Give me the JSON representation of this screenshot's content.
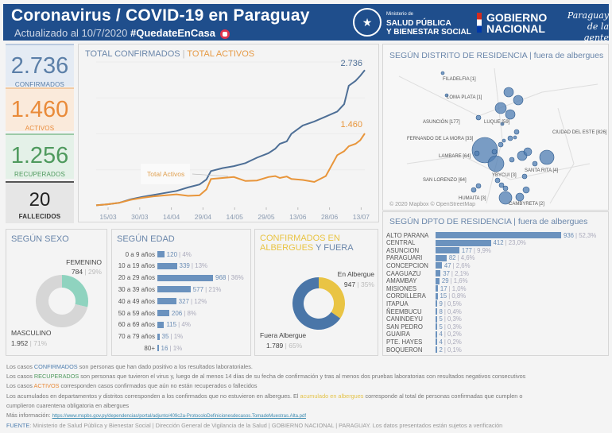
{
  "header": {
    "title": "Coronavirus / COVID-19 en Paraguay",
    "updated": "Actualizado al 10/7/2020",
    "hashtag": "#QuedateEnCasa",
    "ministry_small": "Ministerio de",
    "ministry_line1": "SALUD PÚBLICA",
    "ministry_line2": "Y BIENESTAR SOCIAL",
    "gob_line1": "GOBIERNO",
    "gob_line2": "NACIONAL",
    "slogan_line1": "Paraguay",
    "slogan_line2": "de la gente"
  },
  "kpis": {
    "confirmados": {
      "value": "2.736",
      "label": "CONFIRMADOS"
    },
    "activos": {
      "value": "1.460",
      "label": "ACTIVOS"
    },
    "recuperados": {
      "value": "1.256",
      "label": "RECUPERADOS"
    },
    "fallecidos": {
      "value": "20",
      "label": "FALLECIDOS"
    }
  },
  "colors": {
    "confirmados": "#4e6f96",
    "activos": "#e8953a",
    "recuperados": "#4f9a5e",
    "femenino": "#8fd3bf",
    "masculino": "#d6d6d6",
    "albergue": "#e9c444",
    "fuera": "#4a76a8",
    "bar": "#6b92be"
  },
  "chart_data": [
    {
      "type": "line",
      "title_part1": "TOTAL CONFIRMADOS",
      "title_part2": "TOTAL ACTIVOS",
      "x_ticks": [
        "15/03",
        "30/03",
        "14/04",
        "29/04",
        "14/05",
        "29/05",
        "13/06",
        "28/06",
        "13/07"
      ],
      "ylim": [
        0,
        2900
      ],
      "annotation": "Total Activos",
      "series": [
        {
          "name": "Total Confirmados",
          "end_label": "2.736",
          "x": [
            0,
            5,
            10,
            15,
            20,
            25,
            30,
            35,
            40,
            45,
            48,
            50,
            55,
            60,
            65,
            70,
            75,
            78,
            80,
            83,
            85,
            90,
            95,
            100,
            105,
            108,
            110,
            113,
            115,
            117
          ],
          "values": [
            10,
            30,
            60,
            130,
            180,
            220,
            260,
            300,
            370,
            430,
            530,
            700,
            760,
            800,
            860,
            970,
            1060,
            1150,
            1250,
            1300,
            1450,
            1620,
            1700,
            1800,
            1900,
            2050,
            2420,
            2520,
            2620,
            2736
          ]
        },
        {
          "name": "Total Activos",
          "end_label": "1.460",
          "x": [
            0,
            5,
            10,
            15,
            20,
            25,
            30,
            35,
            40,
            45,
            48,
            50,
            55,
            60,
            65,
            70,
            75,
            78,
            80,
            83,
            85,
            90,
            95,
            100,
            105,
            108,
            110,
            113,
            115,
            117
          ],
          "values": [
            10,
            30,
            60,
            120,
            160,
            190,
            210,
            230,
            200,
            210,
            330,
            540,
            560,
            580,
            500,
            510,
            580,
            600,
            560,
            590,
            540,
            520,
            480,
            600,
            1020,
            1100,
            1200,
            1250,
            1320,
            1460
          ]
        }
      ]
    },
    {
      "type": "pie",
      "title": "SEGÚN SEXO",
      "slices": [
        {
          "label": "FEMENINO",
          "value": 784,
          "value_text": "784",
          "pct": "29%"
        },
        {
          "label": "MASCULINO",
          "value": 1952,
          "value_text": "1.952",
          "pct": "71%"
        }
      ]
    },
    {
      "type": "bar",
      "title": "SEGÚN EDAD",
      "categories": [
        "0 a 9 años",
        "10 a 19 años",
        "20 a 29 años",
        "30 a 39 años",
        "40 a 49 años",
        "50 a 59 años",
        "60 a 69 años",
        "70 a 79 años",
        "80+"
      ],
      "values": [
        120,
        339,
        968,
        577,
        327,
        206,
        115,
        35,
        16
      ],
      "pcts": [
        "4%",
        "13%",
        "36%",
        "21%",
        "12%",
        "8%",
        "4%",
        "1%",
        "1%"
      ]
    },
    {
      "type": "pie",
      "title_part1": "CONFIRMADOS EN ALBERGUES",
      "title_part2": "Y FUERA",
      "slices": [
        {
          "label": "En Albergue",
          "value": 947,
          "value_text": "947",
          "pct": "35%"
        },
        {
          "label": "Fuera Albergue",
          "value": 1789,
          "value_text": "1.789",
          "pct": "65%"
        }
      ]
    },
    {
      "type": "bar",
      "title": "SEGÚN DPTO DE RESIDENCIA | fuera de albergues",
      "categories": [
        "ALTO PARANA",
        "CENTRAL",
        "ASUNCION",
        "PARAGUARI",
        "CONCEPCION",
        "CAAGUAZU",
        "AMAMBAY",
        "MISIONES",
        "CORDILLERA",
        "ITAPUA",
        "ÑEEMBUCU",
        "CANINDEYU",
        "SAN PEDRO",
        "GUAIRA",
        "PTE. HAYES",
        "BOQUERON"
      ],
      "values": [
        936,
        412,
        177,
        82,
        47,
        37,
        29,
        17,
        15,
        9,
        8,
        5,
        5,
        4,
        4,
        2
      ],
      "pcts": [
        "52,3%",
        "23,0%",
        "9,9%",
        "4,6%",
        "2,6%",
        "2,1%",
        "1,6%",
        "1,0%",
        "0,8%",
        "0,5%",
        "0,4%",
        "0,3%",
        "0,3%",
        "0,2%",
        "0,2%",
        "0,1%"
      ]
    }
  ],
  "map": {
    "title": "SEGÚN DISTRITO DE RESIDENCIA | fuera de albergues",
    "labels": [
      "FILADELFIA [1]",
      "LOMA PLATA [1]",
      "ASUNCIÓN [177]",
      "LUQUE [59]",
      "FERNANDO DE LA MORA [33]",
      "LAMBARE [64]",
      "SAN LORENZO [64]",
      "CIUDAD DEL ESTE [826]",
      "SANTA RITA [4]",
      "YBYCUI [3]",
      "HUMAITA [3]",
      "CAMBYRETA [2]"
    ],
    "attribution": "© 2020 Mapbox © OpenStreetMap"
  },
  "footer": {
    "l1a": "Los casos ",
    "l1b": "CONFIRMADOS",
    "l1c": " son personas que han dado positivo a los resultados laboratoriales.",
    "l2a": "Los casos ",
    "l2b": "RECUPERADOS",
    "l2c": " son personas que tuvieron el virus y, luego de al menos 14 días de su fecha de confirmación y tras al menos dos pruebas laboratorias con resultados negativos consecutivos",
    "l3a": "Los casos ",
    "l3b": "ACTIVOS",
    "l3c": " corresponden casos confirmados que aún no están recuperados o fallecidos",
    "l4a": "Los acumulados en departamentos y distritos corresponden a los confirmados que no estuvieron en albergues. El ",
    "l4b": "acumulado en albergues",
    "l4c": " corresponde al total de personas confirmadas que cumplen o",
    "l5": "cumplieron cuarentena obligatoria en albergues",
    "l6a": "Más información: ",
    "link": "https://www.mspbs.gov.py/dependencias/portal/adjunto/409c2a-ProtocoloDefinicionesdecasos.TomadeMuestras.Alta.pdf",
    "l7a": "FUENTE",
    "l7b": ": Ministerio de Salud Pública y Bienestar Social | Dirección General de Vigilancia de la Salud | GOBIERNO NACIONAL | PARAGUAY. Los datos presentados están sujetos a verificación"
  }
}
